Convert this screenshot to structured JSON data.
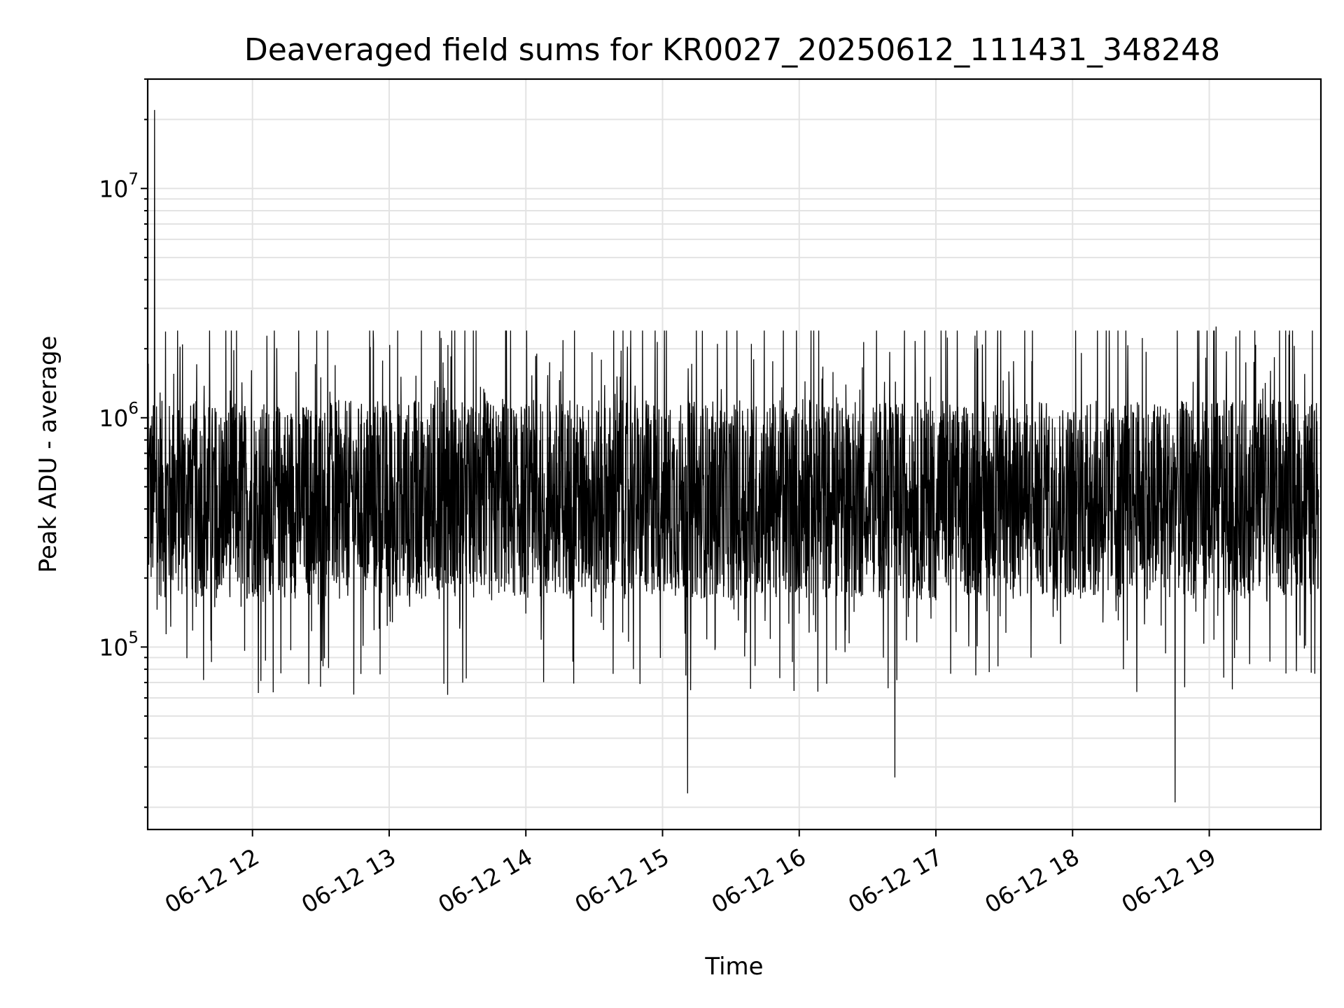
{
  "chart_data": {
    "type": "line",
    "title": "Deaveraged field sums for KR0027_20250612_111431_348248",
    "xlabel": "Time",
    "ylabel": "Peak ADU - average",
    "yscale": "log",
    "ylim": [
      16000,
      30000000
    ],
    "xlim": [
      "06-12 11:14",
      "06-12 19:49"
    ],
    "grid": true,
    "legend": "none",
    "line_color": "#000000",
    "x_ticks": [
      "06-12 12",
      "06-12 13",
      "06-12 14",
      "06-12 15",
      "06-12 16",
      "06-12 17",
      "06-12 18",
      "06-12 19"
    ],
    "y_ticks": [
      {
        "value": 100000,
        "base": "10",
        "exp": "5"
      },
      {
        "value": 1000000,
        "base": "10",
        "exp": "6"
      },
      {
        "value": 10000000,
        "base": "10",
        "exp": "7"
      }
    ],
    "series": [
      {
        "x": [
          "06-12 11:14",
          "06-12 11:15",
          "06-12 11:17",
          "06-12 11:18",
          "06-12 11:21",
          "06-12 11:30",
          "06-12 11:45",
          "06-12 11:50",
          "06-12 11:53",
          "06-12 11:55",
          "06-12 12:15",
          "06-12 12:27",
          "06-12 12:30",
          "06-12 12:34",
          "06-12 12:40",
          "06-12 13:00",
          "06-12 13:09",
          "06-12 13:30",
          "06-12 13:45",
          "06-12 14:00",
          "06-12 14:30",
          "06-12 14:50",
          "06-12 15:10",
          "06-12 15:11",
          "06-12 15:30",
          "06-12 15:38",
          "06-12 15:39",
          "06-12 15:40",
          "06-12 15:42",
          "06-12 15:45",
          "06-12 16:00",
          "06-12 16:20",
          "06-12 16:42",
          "06-12 17:00",
          "06-12 17:30",
          "06-12 17:57",
          "06-12 18:00",
          "06-12 18:30",
          "06-12 18:45",
          "06-12 19:00",
          "06-12 19:03",
          "06-12 19:05",
          "06-12 19:10",
          "06-12 19:20",
          "06-12 19:30",
          "06-12 19:35",
          "06-12 19:45",
          "06-12 19:48"
        ],
        "values": [
          250000,
          900000,
          22000000,
          600000,
          300000,
          280000,
          220000,
          180000,
          2400000,
          150000,
          200000,
          300000,
          1500000,
          1300000,
          200000,
          150000,
          150000,
          200000,
          160000,
          140000,
          180000,
          250000,
          150000,
          23000,
          160000,
          200000,
          2100000,
          1800000,
          200000,
          130000,
          140000,
          150000,
          27000,
          160000,
          200000,
          250000,
          220000,
          230000,
          21000,
          200000,
          2500000,
          800000,
          400000,
          2400000,
          300000,
          2300000,
          500000,
          450000
        ]
      }
    ]
  }
}
